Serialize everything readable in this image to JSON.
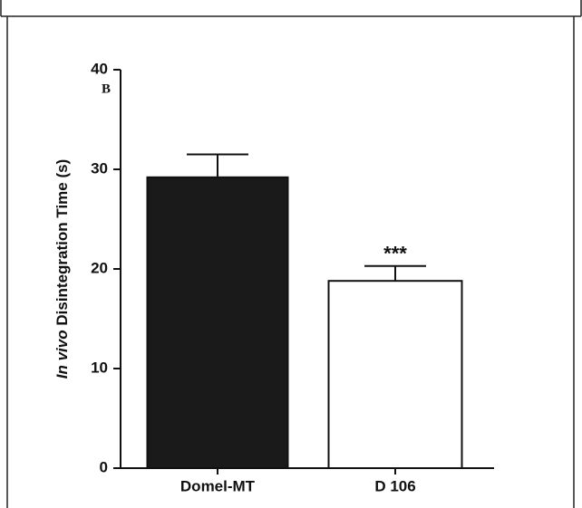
{
  "chart_data": {
    "type": "bar",
    "panel_label": "B",
    "y_label_italic": "In vivo",
    "y_label": "Disintegration  Time (s)",
    "categories": [
      "Domel-MT",
      "D 106"
    ],
    "values": [
      29.2,
      18.8
    ],
    "errors": [
      2.3,
      1.5
    ],
    "colors": [
      "#1a1a1a",
      "#ffffff"
    ],
    "annotation": "***",
    "ylim": [
      0,
      40
    ],
    "yticks": [
      0,
      10,
      20,
      30,
      40
    ]
  }
}
